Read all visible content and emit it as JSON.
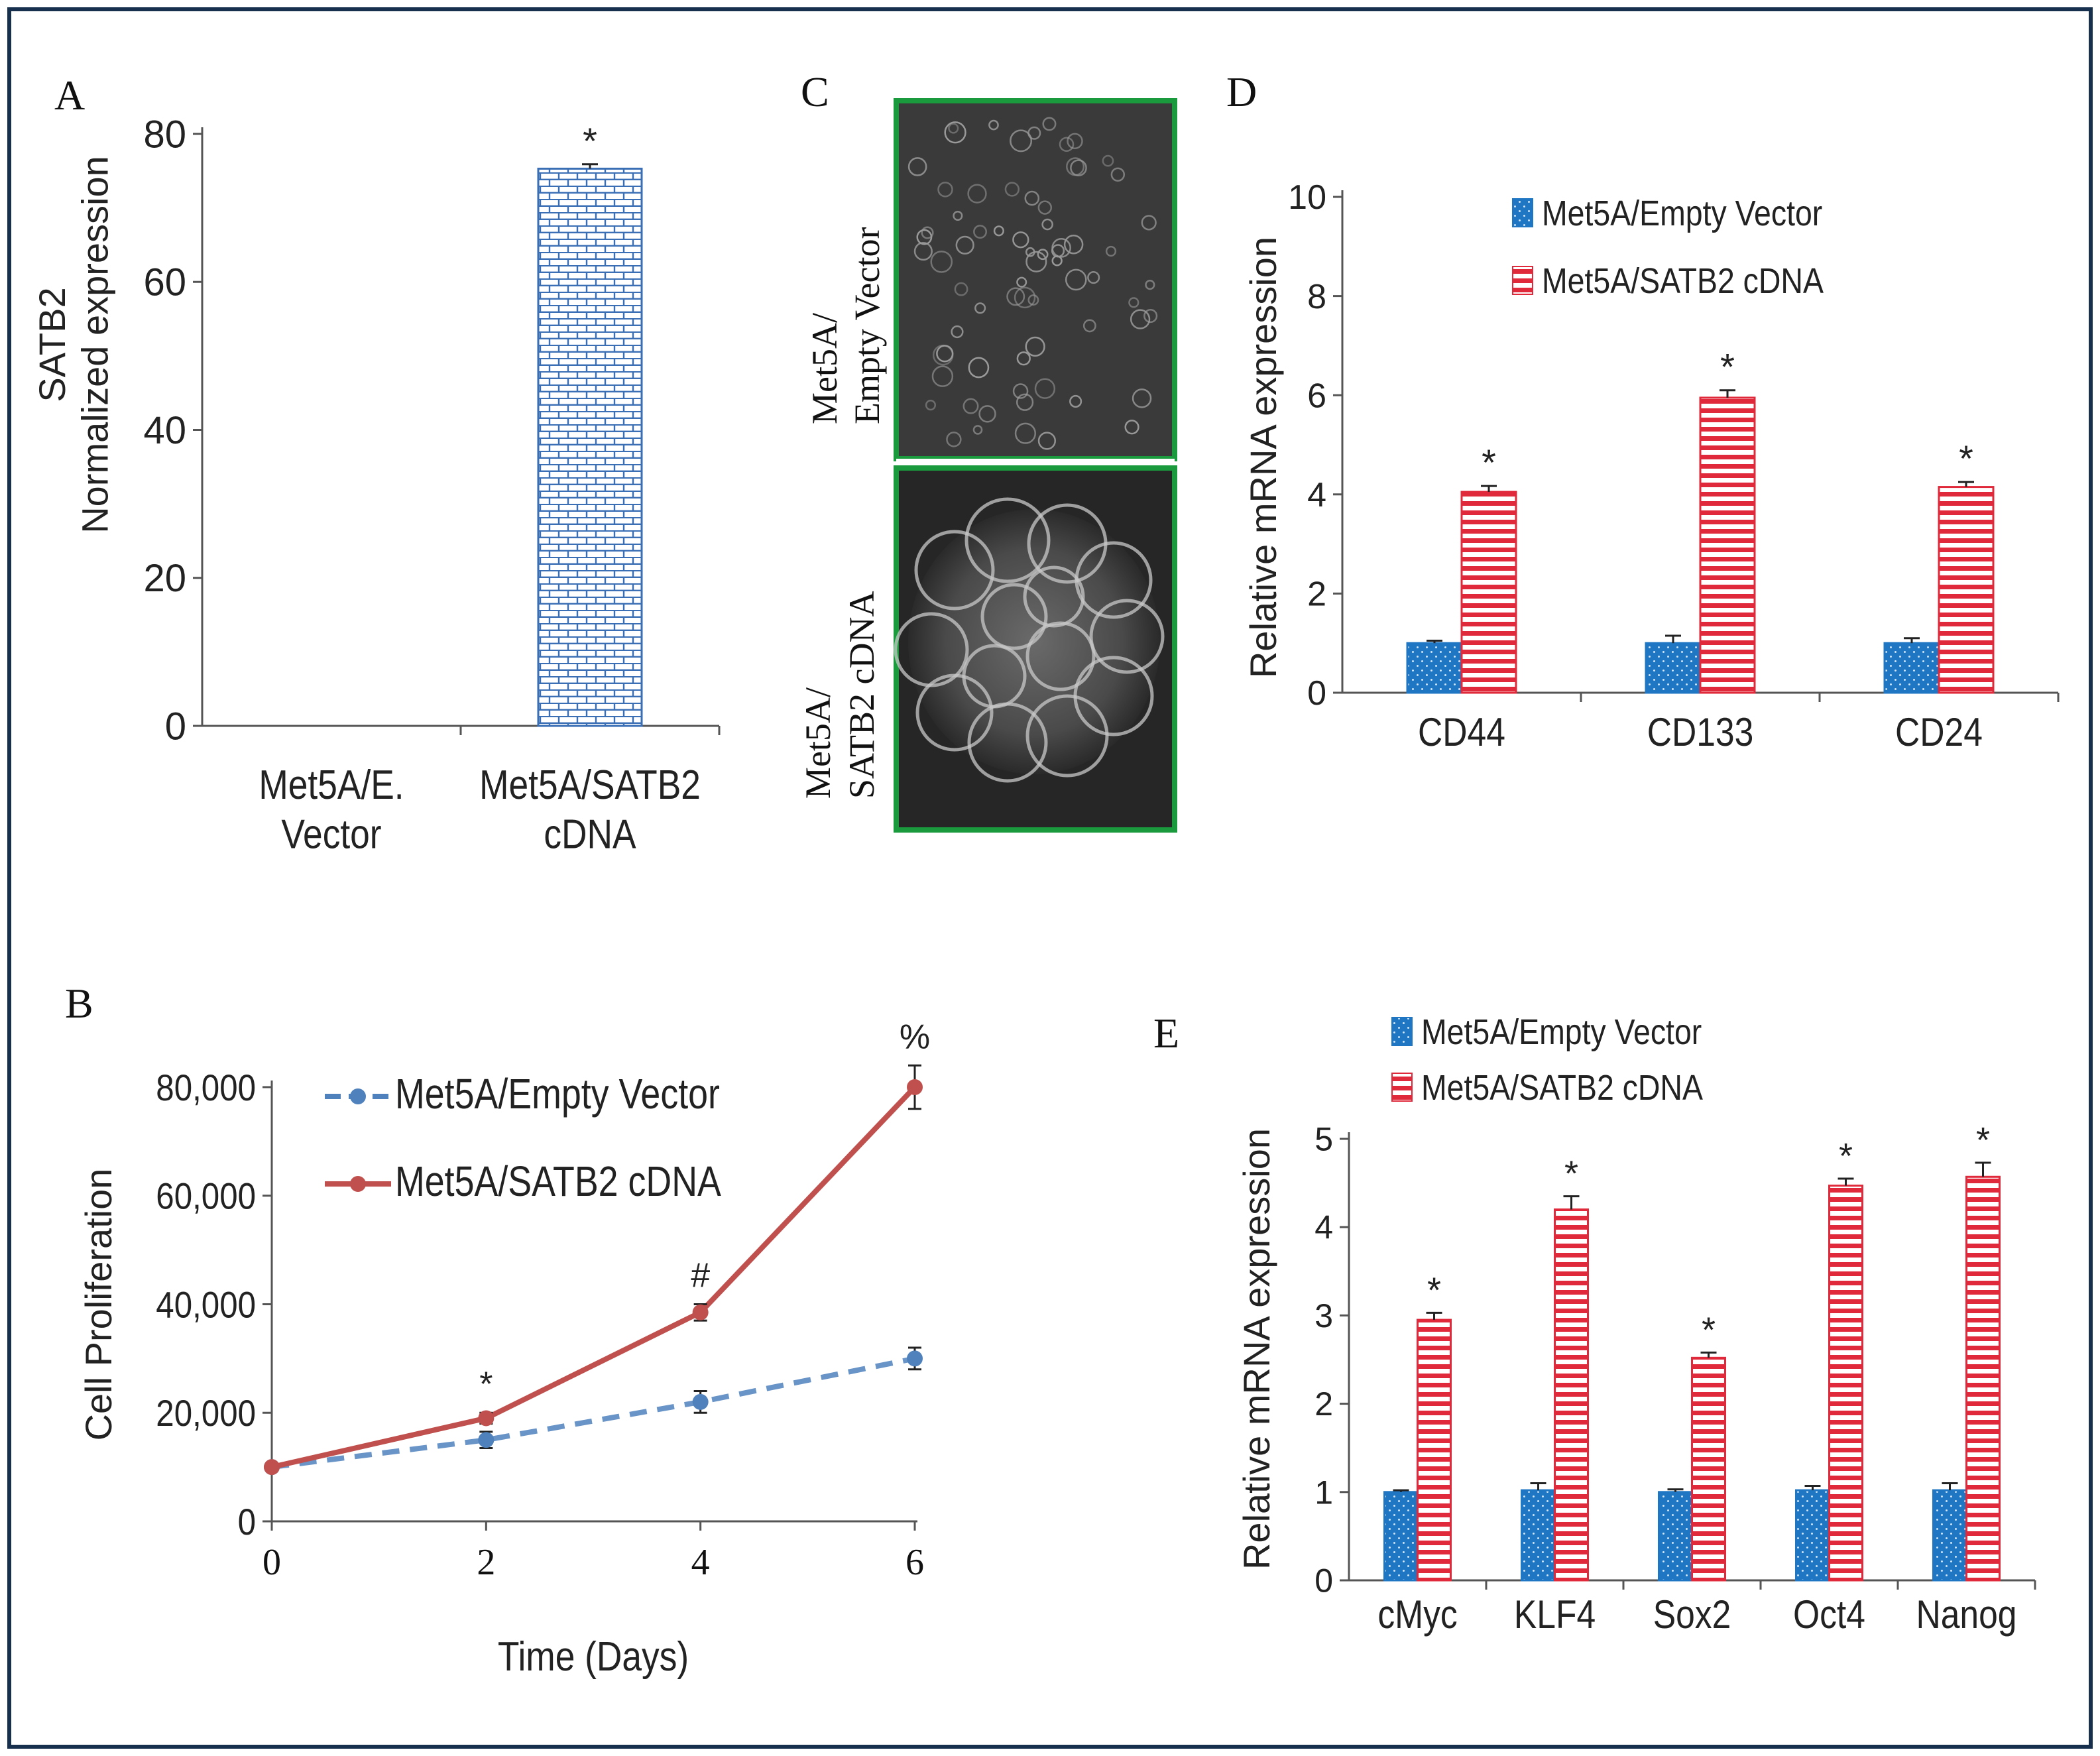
{
  "panels": {
    "A": "A",
    "B": "B",
    "C": "C",
    "D": "D",
    "E": "E"
  },
  "chart_data": [
    {
      "id": "A",
      "type": "bar",
      "categories": [
        [
          "Met5A/E.",
          "Vector"
        ],
        [
          "Met5A/SATB2",
          "cDNA"
        ]
      ],
      "values": [
        0,
        75.3
      ],
      "errors": [
        0,
        0.6
      ],
      "annotations": [
        "",
        "*"
      ],
      "ylabel": [
        "SATB2",
        "Normalized expression"
      ],
      "ylim": [
        0,
        80
      ],
      "yticks": [
        "0",
        "20",
        "40",
        "60",
        "80"
      ],
      "ytick_values": [
        0,
        20,
        40,
        60,
        80
      ],
      "pattern": "brick",
      "color": "#3a6eb5"
    },
    {
      "id": "B",
      "type": "line",
      "x": [
        0,
        2,
        4,
        6
      ],
      "xticks": [
        "0",
        "2",
        "4",
        "6"
      ],
      "xlabel": "Time (Days)",
      "ylabel": "Cell Proliferation",
      "ylim": [
        0,
        80000
      ],
      "yticks": [
        "0",
        "20,000",
        "40,000",
        "60,000",
        "80,000"
      ],
      "ytick_values": [
        0,
        20000,
        40000,
        60000,
        80000
      ],
      "series": [
        {
          "name": "Met5A/Empty Vector",
          "values": [
            10000,
            15000,
            22000,
            30000
          ],
          "errors": [
            0,
            1500,
            2000,
            2000
          ],
          "color": "#4f81bd",
          "style": "dashed"
        },
        {
          "name": "Met5A/SATB2 cDNA",
          "values": [
            10000,
            19000,
            38500,
            80000
          ],
          "errors": [
            0,
            1000,
            1500,
            4000
          ],
          "color": "#c0504d",
          "style": "solid"
        }
      ],
      "annotations": [
        {
          "x": 2,
          "text": "*"
        },
        {
          "x": 4,
          "text": "#"
        },
        {
          "x": 6,
          "text": "%"
        }
      ],
      "legend": "top-left"
    },
    {
      "id": "D",
      "type": "bar",
      "categories": [
        "CD44",
        "CD133",
        "CD24"
      ],
      "ylabel": "Relative  mRNA  expression",
      "ylim": [
        0,
        10
      ],
      "yticks": [
        "0",
        "2",
        "4",
        "6",
        "8",
        "10"
      ],
      "ytick_values": [
        0,
        2,
        4,
        6,
        8,
        10
      ],
      "series": [
        {
          "name": "Met5A/Empty Vector",
          "values": [
            1.0,
            1.0,
            1.0
          ],
          "errors": [
            0.05,
            0.15,
            0.1
          ],
          "color": "#1f77c4",
          "pattern": "dots"
        },
        {
          "name": "Met5A/SATB2 cDNA",
          "values": [
            4.05,
            5.95,
            4.15
          ],
          "errors": [
            0.12,
            0.15,
            0.1
          ],
          "color": "#e0293a",
          "pattern": "hstripes"
        }
      ],
      "annotations": [
        "*",
        "*",
        "*"
      ],
      "legend": "top-center"
    },
    {
      "id": "E",
      "type": "bar",
      "categories": [
        "cMyc",
        "KLF4",
        "Sox2",
        "Oct4",
        "Nanog"
      ],
      "ylabel": "Relative  mRNA  expression",
      "ylim": [
        0,
        5
      ],
      "yticks": [
        "0",
        "1",
        "2",
        "3",
        "4",
        "5"
      ],
      "ytick_values": [
        0,
        1,
        2,
        3,
        4,
        5
      ],
      "series": [
        {
          "name": "Met5A/Empty Vector",
          "values": [
            1.0,
            1.02,
            1.0,
            1.02,
            1.02
          ],
          "errors": [
            0.02,
            0.08,
            0.03,
            0.05,
            0.08
          ],
          "color": "#1f77c4",
          "pattern": "dots"
        },
        {
          "name": "Met5A/SATB2 cDNA",
          "values": [
            2.95,
            4.2,
            2.52,
            4.47,
            4.57
          ],
          "errors": [
            0.08,
            0.15,
            0.06,
            0.08,
            0.16
          ],
          "color": "#e0293a",
          "pattern": "hstripes"
        }
      ],
      "annotations": [
        "*",
        "*",
        "*",
        "*",
        "*"
      ],
      "legend": "top-left"
    }
  ],
  "panel_c": {
    "top_label": [
      "Met5A/",
      "Empty Vector"
    ],
    "bottom_label": [
      "Met5A/",
      "SATB2 cDNA"
    ],
    "frame_color": "#1a9a3c"
  }
}
